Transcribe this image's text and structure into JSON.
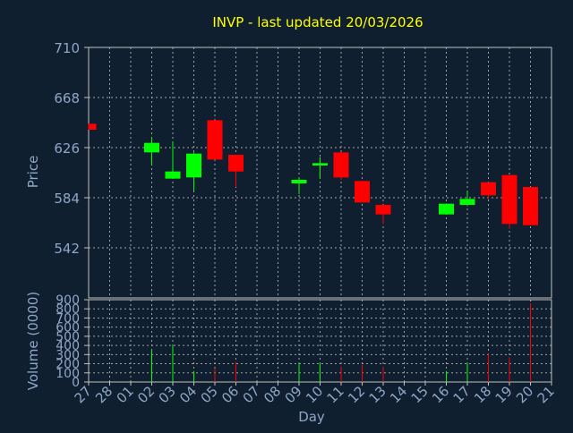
{
  "chart_data": {
    "type": "candlestick",
    "title": "INVP - last updated 20/03/2026",
    "xlabel": "Day",
    "grid": true,
    "colors": {
      "background": "#0f1f30",
      "title": "#ffff00",
      "axis_text": "#8fa6c6",
      "grid": "#a0a0a0",
      "up": "#00ff00",
      "down": "#ff0000",
      "frame": "#c0c0c0"
    },
    "x_ticks": [
      "27",
      "28",
      "01",
      "02",
      "03",
      "04",
      "05",
      "06",
      "07",
      "08",
      "09",
      "10",
      "11",
      "12",
      "13",
      "14",
      "15",
      "16",
      "17",
      "18",
      "19",
      "20",
      "21"
    ],
    "price_panel": {
      "ylabel": "Price",
      "ylim": [
        500,
        710
      ],
      "yticks": [
        542,
        584,
        626,
        668,
        710
      ],
      "candles": [
        {
          "day": "27",
          "open": 646,
          "close": 641,
          "high": 646,
          "low": 641
        },
        {
          "day": "02",
          "open": 622,
          "close": 630,
          "high": 635,
          "low": 612
        },
        {
          "day": "03",
          "open": 600,
          "close": 606,
          "high": 631,
          "low": 600
        },
        {
          "day": "04",
          "open": 601,
          "close": 621,
          "high": 622,
          "low": 590
        },
        {
          "day": "05",
          "open": 649,
          "close": 616,
          "high": 649,
          "low": 616
        },
        {
          "day": "06",
          "open": 620,
          "close": 606,
          "high": 620,
          "low": 593
        },
        {
          "day": "09",
          "open": 596,
          "close": 599,
          "high": 601,
          "low": 587
        },
        {
          "day": "10",
          "open": 611,
          "close": 613,
          "high": 618,
          "low": 600
        },
        {
          "day": "11",
          "open": 622,
          "close": 601,
          "high": 622,
          "low": 599
        },
        {
          "day": "12",
          "open": 598,
          "close": 580,
          "high": 598,
          "low": 580
        },
        {
          "day": "13",
          "open": 578,
          "close": 570,
          "high": 578,
          "low": 562
        },
        {
          "day": "16",
          "open": 570,
          "close": 579,
          "high": 579,
          "low": 570
        },
        {
          "day": "17",
          "open": 578,
          "close": 583,
          "high": 589,
          "low": 577
        },
        {
          "day": "18",
          "open": 597,
          "close": 586,
          "high": 597,
          "low": 583
        },
        {
          "day": "19",
          "open": 603,
          "close": 562,
          "high": 603,
          "low": 558
        },
        {
          "day": "20",
          "open": 593,
          "close": 561,
          "high": 593,
          "low": 561
        }
      ]
    },
    "volume_panel": {
      "ylabel": "Volume (0000)",
      "ylim": [
        0,
        900
      ],
      "yticks": [
        0,
        100,
        200,
        300,
        400,
        500,
        600,
        700,
        800,
        900
      ],
      "bars": [
        {
          "day": "02",
          "value": 360,
          "direction": "up"
        },
        {
          "day": "03",
          "value": 410,
          "direction": "up"
        },
        {
          "day": "04",
          "value": 120,
          "direction": "up"
        },
        {
          "day": "05",
          "value": 150,
          "direction": "down"
        },
        {
          "day": "06",
          "value": 220,
          "direction": "down"
        },
        {
          "day": "09",
          "value": 210,
          "direction": "up"
        },
        {
          "day": "10",
          "value": 210,
          "direction": "up"
        },
        {
          "day": "11",
          "value": 170,
          "direction": "down"
        },
        {
          "day": "12",
          "value": 190,
          "direction": "down"
        },
        {
          "day": "13",
          "value": 170,
          "direction": "down"
        },
        {
          "day": "16",
          "value": 120,
          "direction": "up"
        },
        {
          "day": "17",
          "value": 210,
          "direction": "up"
        },
        {
          "day": "18",
          "value": 310,
          "direction": "down"
        },
        {
          "day": "19",
          "value": 270,
          "direction": "down"
        },
        {
          "day": "20",
          "value": 860,
          "direction": "down"
        }
      ]
    }
  }
}
